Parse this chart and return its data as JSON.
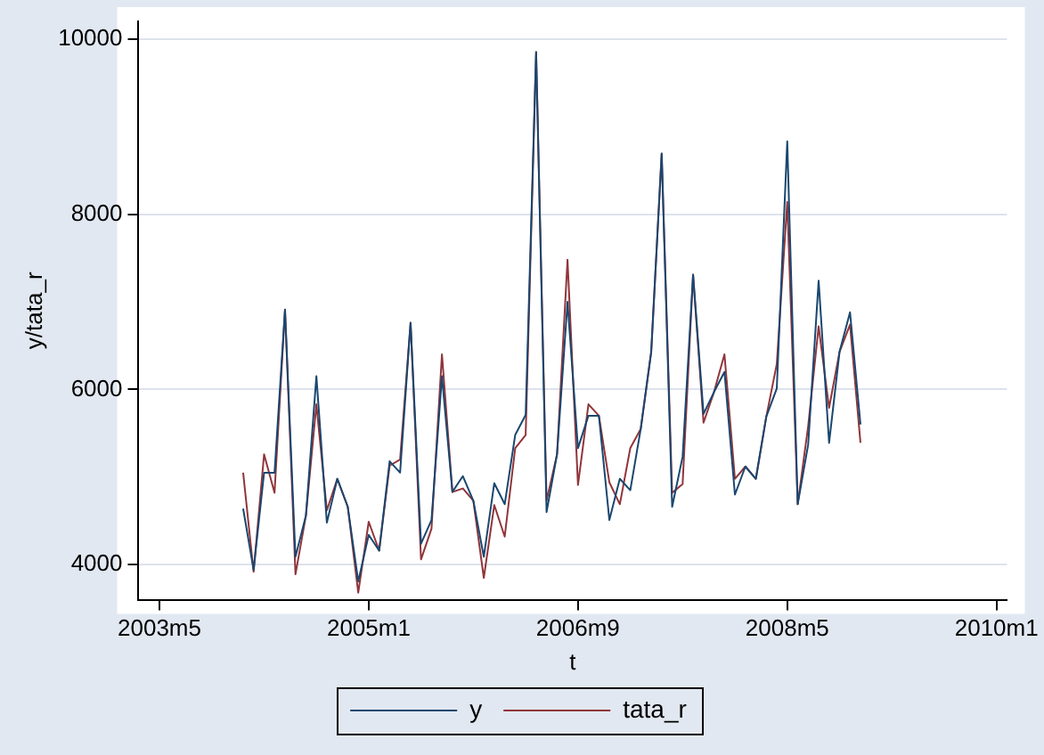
{
  "chart_data": {
    "type": "line",
    "xlabel": "t",
    "ylabel": "y/tata_r",
    "xlim": [
      "2003-03",
      "2010-02"
    ],
    "xticks": [
      {
        "value": "2003-05",
        "label": "2003m5"
      },
      {
        "value": "2005-01",
        "label": "2005m1"
      },
      {
        "value": "2006-09",
        "label": "2006m9"
      },
      {
        "value": "2008-05",
        "label": "2008m5"
      },
      {
        "value": "2010-01",
        "label": "2010m1"
      }
    ],
    "ylim": [
      3600,
      10200
    ],
    "yticks": [
      4000,
      6000,
      8000,
      10000
    ],
    "grid": "y",
    "legend": "bottom",
    "x": [
      "2004-01",
      "2004-02",
      "2004-03",
      "2004-04",
      "2004-05",
      "2004-06",
      "2004-07",
      "2004-08",
      "2004-09",
      "2004-10",
      "2004-11",
      "2004-12",
      "2005-01",
      "2005-02",
      "2005-03",
      "2005-04",
      "2005-05",
      "2005-06",
      "2005-07",
      "2005-08",
      "2005-09",
      "2005-10",
      "2005-11",
      "2005-12",
      "2006-01",
      "2006-02",
      "2006-03",
      "2006-04",
      "2006-05",
      "2006-06",
      "2006-07",
      "2006-08",
      "2006-09",
      "2006-10",
      "2006-11",
      "2006-12",
      "2007-01",
      "2007-02",
      "2007-03",
      "2007-04",
      "2007-05",
      "2007-06",
      "2007-07",
      "2007-08",
      "2007-09",
      "2007-10",
      "2007-11",
      "2007-12",
      "2008-01",
      "2008-02",
      "2008-03",
      "2008-04",
      "2008-05",
      "2008-06",
      "2008-07",
      "2008-08",
      "2008-09",
      "2008-10",
      "2008-11",
      "2008-12"
    ],
    "series": [
      {
        "name": "y",
        "color": "#1a476f",
        "values": [
          4640,
          3940,
          5050,
          5050,
          6910,
          4090,
          4560,
          6150,
          4480,
          4980,
          4660,
          3810,
          4340,
          4160,
          5180,
          5050,
          6760,
          4240,
          4510,
          6150,
          4830,
          5010,
          4730,
          4090,
          4930,
          4690,
          5480,
          5710,
          9850,
          4600,
          5260,
          7000,
          5330,
          5700,
          5700,
          4510,
          4980,
          4850,
          5550,
          6430,
          8690,
          4660,
          5230,
          7310,
          5720,
          5970,
          6200,
          4800,
          5120,
          4980,
          5690,
          6010,
          8830,
          4690,
          5370,
          7240,
          5390,
          6430,
          6880,
          5600
        ]
      },
      {
        "name": "tata_r",
        "color": "#90353b",
        "values": [
          5050,
          3920,
          5260,
          4820,
          6910,
          3890,
          4560,
          5830,
          4620,
          4980,
          4660,
          3680,
          4490,
          4160,
          5130,
          5200,
          6760,
          4060,
          4410,
          6400,
          4830,
          4870,
          4730,
          3850,
          4680,
          4320,
          5330,
          5480,
          9850,
          4730,
          5260,
          7480,
          4910,
          5830,
          5700,
          4940,
          4690,
          5330,
          5550,
          6430,
          8690,
          4820,
          4920,
          7310,
          5620,
          5970,
          6400,
          4980,
          5120,
          4980,
          5690,
          6290,
          8140,
          4690,
          5580,
          6720,
          5790,
          6430,
          6740,
          5390
        ]
      }
    ]
  }
}
